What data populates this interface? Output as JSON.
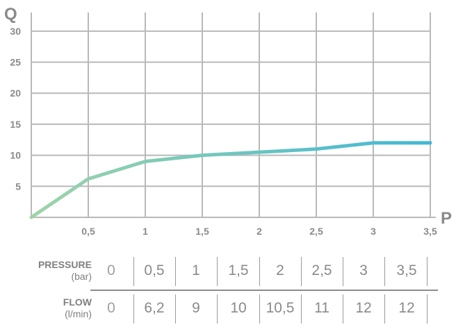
{
  "chart_data": {
    "type": "line",
    "x": [
      0,
      0.5,
      1,
      1.5,
      2,
      2.5,
      3,
      3.5
    ],
    "series": [
      {
        "values": [
          0,
          6.2,
          9,
          10,
          10.5,
          11,
          12,
          12
        ]
      }
    ],
    "xlabel": "P",
    "ylabel": "Q",
    "xlim": [
      0,
      3.5
    ],
    "ylim": [
      0,
      33
    ],
    "x_ticks": [
      0.5,
      1,
      1.5,
      2,
      2.5,
      3,
      3.5
    ],
    "x_tick_labels": [
      "0,5",
      "1",
      "1,5",
      "2",
      "2,5",
      "3",
      "3,5"
    ],
    "y_ticks": [
      5,
      10,
      15,
      20,
      25,
      30
    ],
    "y_tick_labels": [
      "5",
      "10",
      "15",
      "20",
      "25",
      "30"
    ],
    "grid": true,
    "line_gradient": [
      "#9fd4a8",
      "#3fb8d6"
    ],
    "grid_color": "#b9b9b9"
  },
  "table": {
    "rows": [
      {
        "label": "PRESSURE",
        "unit": "(bar)",
        "values": [
          "0",
          "0,5",
          "1",
          "1,5",
          "2",
          "2,5",
          "3",
          "3,5"
        ]
      },
      {
        "label": "FLOW",
        "unit": "(l/min)",
        "values": [
          "0",
          "6,2",
          "9",
          "10",
          "10,5",
          "11",
          "12",
          "12"
        ]
      }
    ]
  }
}
